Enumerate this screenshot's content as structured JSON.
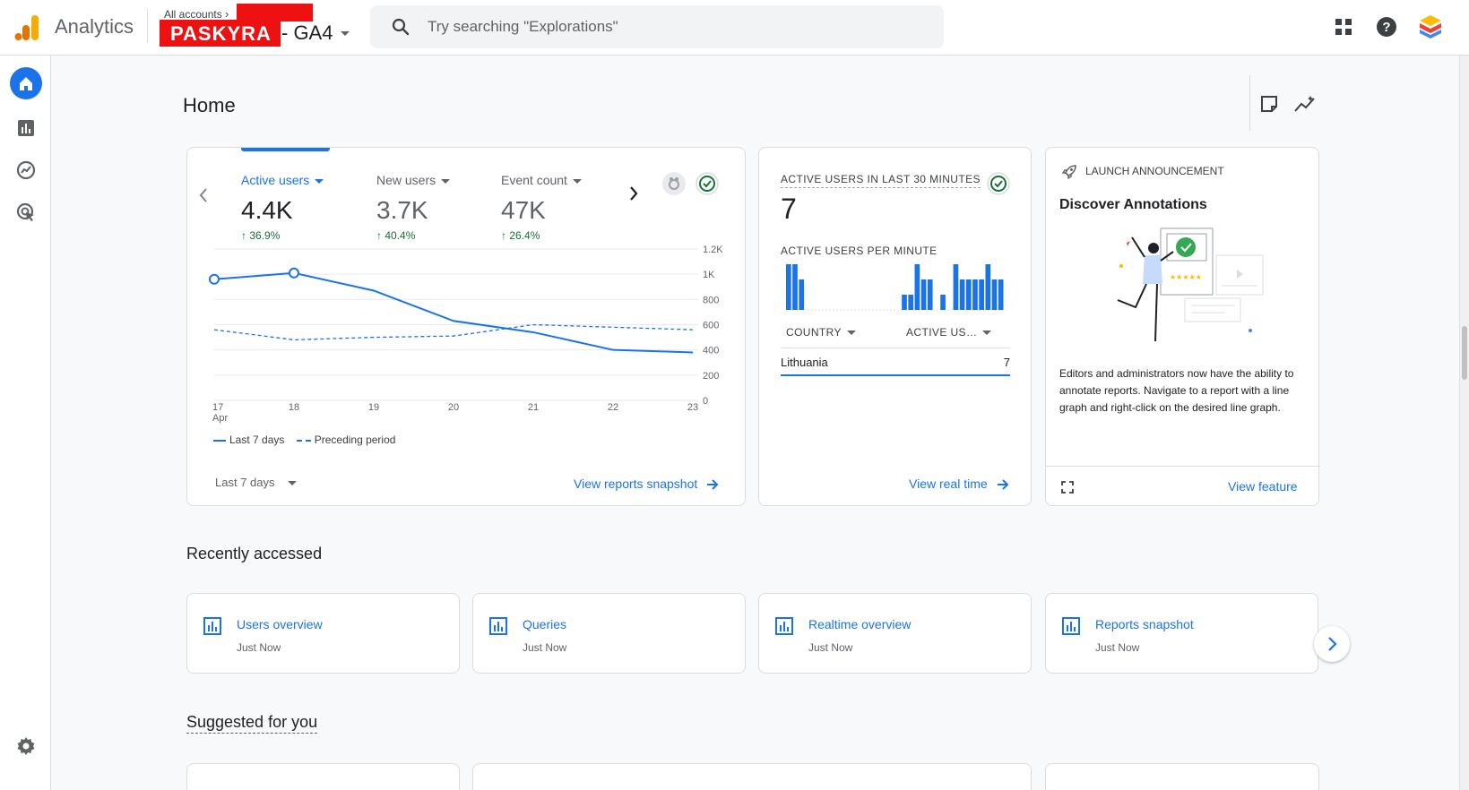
{
  "header": {
    "app_name": "Analytics",
    "breadcrumb": "All accounts",
    "account_name": "PASKYRA",
    "property_name": "- GA4",
    "search_placeholder": "Try searching \"Explorations\""
  },
  "page": {
    "title": "Home"
  },
  "overview_card": {
    "metrics": [
      {
        "label": "Active users",
        "value": "4.4K",
        "delta": "36.9%"
      },
      {
        "label": "New users",
        "value": "3.7K",
        "delta": "40.4%"
      },
      {
        "label": "Event count",
        "value": "47K",
        "delta": "26.4%"
      }
    ],
    "legend_current": "Last 7 days",
    "legend_previous": "Preceding period",
    "date_range": "Last 7 days",
    "link": "View reports snapshot"
  },
  "chart_data": {
    "type": "line",
    "x": [
      "17 Apr",
      "18",
      "19",
      "20",
      "21",
      "22",
      "23"
    ],
    "x_tick_labels": [
      "17",
      "18",
      "19",
      "20",
      "21",
      "22",
      "23"
    ],
    "x_tick_sublabel": "Apr",
    "y_ticks": [
      "1.2K",
      "1K",
      "800",
      "600",
      "400",
      "200",
      "0"
    ],
    "ylim": [
      0,
      1200
    ],
    "series": [
      {
        "name": "Last 7 days",
        "values": [
          960,
          1010,
          870,
          630,
          540,
          400,
          380
        ],
        "style": "solid",
        "color": "#1a73e8"
      },
      {
        "name": "Preceding period",
        "values": [
          560,
          480,
          500,
          510,
          600,
          580,
          560
        ],
        "style": "dashed",
        "color": "#1a73e8"
      }
    ]
  },
  "realtime_card": {
    "title": "ACTIVE USERS IN LAST 30 MINUTES",
    "value": "7",
    "per_minute_label": "ACTIVE USERS PER MINUTE",
    "per_minute_values": [
      3,
      3,
      2,
      0,
      0,
      0,
      0,
      0,
      0,
      0,
      0,
      0,
      0,
      0,
      0,
      0,
      0,
      0,
      1,
      1,
      3,
      2,
      2,
      0,
      1,
      0,
      3,
      2,
      2,
      2,
      2,
      3,
      2,
      2
    ],
    "col_country": "COUNTRY",
    "col_active": "ACTIVE US…",
    "rows": [
      {
        "country": "Lithuania",
        "users": "7"
      }
    ],
    "link": "View real time"
  },
  "announcement_card": {
    "eyebrow": "LAUNCH ANNOUNCEMENT",
    "title": "Discover Annotations",
    "body": "Editors and administrators now have the ability to annotate reports. Navigate to a report with a line graph and right-click on the desired line graph.",
    "link": "View feature"
  },
  "recently_accessed": {
    "title": "Recently accessed",
    "items": [
      {
        "label": "Users overview",
        "time": "Just Now"
      },
      {
        "label": "Queries",
        "time": "Just Now"
      },
      {
        "label": "Realtime overview",
        "time": "Just Now"
      },
      {
        "label": "Reports snapshot",
        "time": "Just Now"
      }
    ]
  },
  "suggested": {
    "title": "Suggested for you"
  },
  "colors": {
    "accent": "#1a73e8",
    "positive": "#137333",
    "redaction": "#ee1111"
  }
}
